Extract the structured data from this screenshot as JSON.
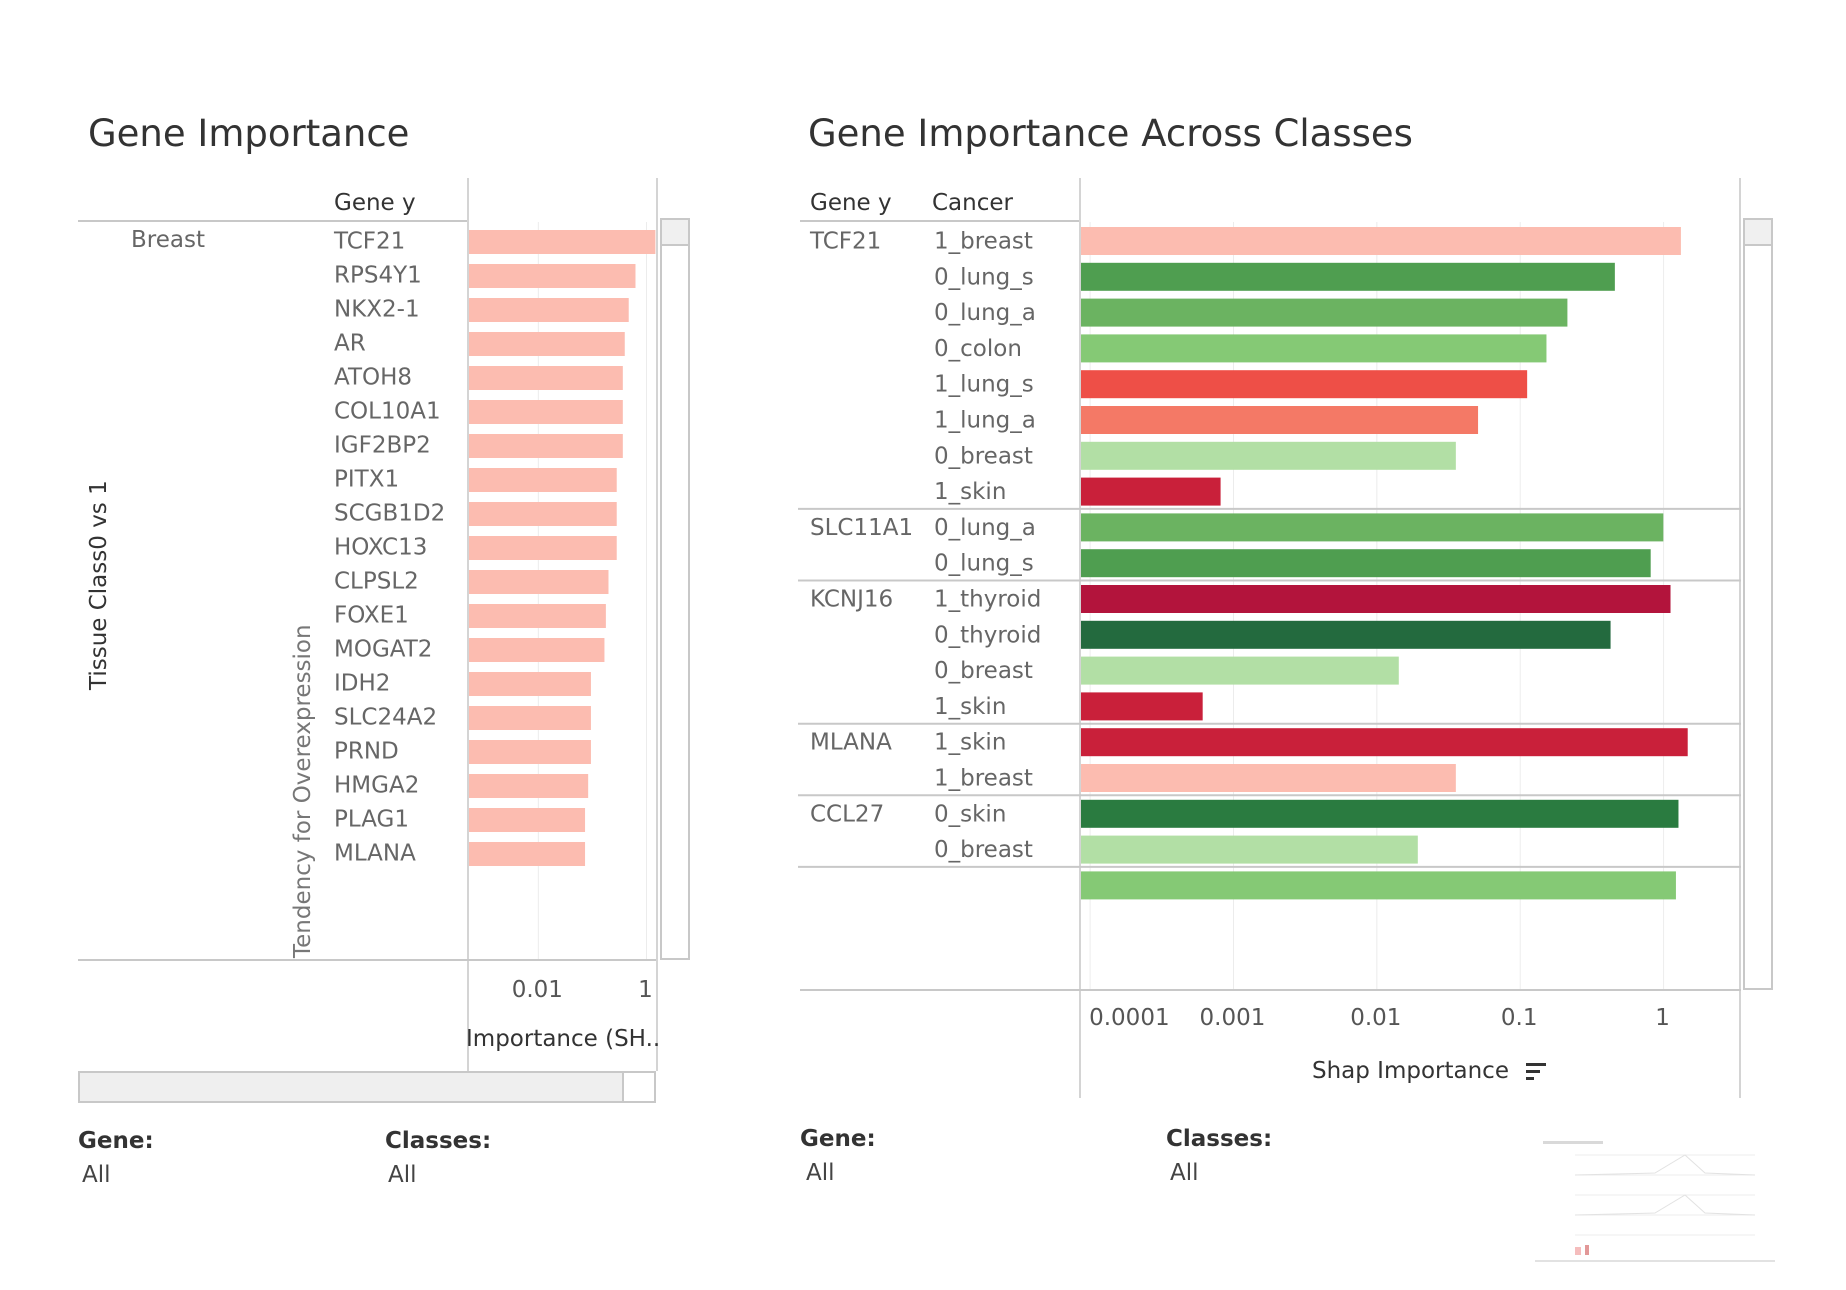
{
  "left": {
    "title": "Gene Importance",
    "header_gene": "Gene y",
    "row_axis_label": "Tissue Class0 vs 1",
    "group_axis_label": "Tendency for Overexpression",
    "group": "Breast",
    "x_axis_title": "Importance (SH..",
    "filters": [
      {
        "label": "Gene:",
        "value": "All"
      },
      {
        "label": "Classes:",
        "value": "All"
      }
    ]
  },
  "right": {
    "title": "Gene Importance Across Classes",
    "header_gene": "Gene y",
    "header_cancer": "Cancer",
    "x_axis_title": "Shap Importance",
    "sort_icon": "sort-descending-icon",
    "filters": [
      {
        "label": "Gene:",
        "value": "All"
      },
      {
        "label": "Classes:",
        "value": "All"
      }
    ]
  },
  "chart_data": [
    {
      "type": "bar",
      "orientation": "horizontal",
      "title": "Gene Importance",
      "xlabel": "Importance (SH..",
      "ylabel": "Gene y",
      "x_scale": "log",
      "xlim": [
        0.0005,
        1.5
      ],
      "x_ticks": [
        "0.01",
        "1"
      ],
      "color": "#fcbcb0",
      "categories": [
        "TCF21",
        "RPS4Y1",
        "NKX2-1",
        "AR",
        "ATOH8",
        "COL10A1",
        "IGF2BP2",
        "PITX1",
        "SCGB1D2",
        "HOXC13",
        "CLPSL2",
        "FOXE1",
        "MOGAT2",
        "IDH2",
        "SLC24A2",
        "PRND",
        "HMGA2",
        "PLAG1",
        "MLANA"
      ],
      "values": [
        1.4,
        0.6,
        0.45,
        0.38,
        0.35,
        0.35,
        0.35,
        0.27,
        0.27,
        0.27,
        0.19,
        0.17,
        0.16,
        0.09,
        0.09,
        0.09,
        0.08,
        0.07,
        0.07
      ]
    },
    {
      "type": "bar",
      "orientation": "horizontal",
      "title": "Gene Importance Across Classes",
      "xlabel": "Shap Importance",
      "x_scale": "log",
      "xlim": [
        8.5e-05,
        3.2
      ],
      "x_ticks": [
        "0.0001",
        "0.001",
        "0.01",
        "0.1",
        "1"
      ],
      "groups": [
        {
          "gene": "TCF21",
          "rows": [
            {
              "cancer": "1_breast",
              "value": 1.3,
              "color": "#fcbcb0"
            },
            {
              "cancer": "0_lung_s",
              "value": 0.45,
              "color": "#4f9e50"
            },
            {
              "cancer": "0_lung_a",
              "value": 0.21,
              "color": "#6bb361"
            },
            {
              "cancer": "0_colon",
              "value": 0.15,
              "color": "#85c975"
            },
            {
              "cancer": "1_lung_s",
              "value": 0.11,
              "color": "#ee4f47"
            },
            {
              "cancer": "1_lung_a",
              "value": 0.05,
              "color": "#f47966"
            },
            {
              "cancer": "0_breast",
              "value": 0.035,
              "color": "#b2dfa5"
            },
            {
              "cancer": "1_skin",
              "value": 0.0008,
              "color": "#c9203a"
            }
          ]
        },
        {
          "gene": "SLC11A1",
          "rows": [
            {
              "cancer": "0_lung_a",
              "value": 0.98,
              "color": "#6bb361"
            },
            {
              "cancer": "0_lung_s",
              "value": 0.8,
              "color": "#4f9e50"
            }
          ]
        },
        {
          "gene": "KCNJ16",
          "rows": [
            {
              "cancer": "1_thyroid",
              "value": 1.1,
              "color": "#b3143c"
            },
            {
              "cancer": "0_thyroid",
              "value": 0.42,
              "color": "#236a3e"
            },
            {
              "cancer": "0_breast",
              "value": 0.014,
              "color": "#b2dfa5"
            },
            {
              "cancer": "1_skin",
              "value": 0.0006,
              "color": "#c9203a"
            }
          ]
        },
        {
          "gene": "MLANA",
          "rows": [
            {
              "cancer": "1_skin",
              "value": 1.45,
              "color": "#c9203a"
            },
            {
              "cancer": "1_breast",
              "value": 0.035,
              "color": "#fcbcb0"
            }
          ]
        },
        {
          "gene": "CCL27",
          "rows": [
            {
              "cancer": "0_skin",
              "value": 1.25,
              "color": "#2a7b40"
            },
            {
              "cancer": "0_breast",
              "value": 0.019,
              "color": "#b2dfa5"
            }
          ]
        }
      ]
    }
  ]
}
